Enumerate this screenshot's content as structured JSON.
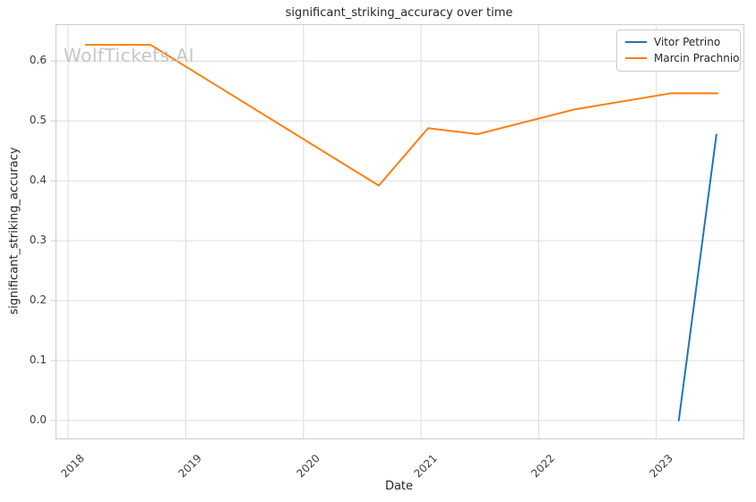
{
  "figure": {
    "watermark": "WolfTickets.AI"
  },
  "chart_data": {
    "type": "line",
    "title": "significant_striking_accuracy over time",
    "xlabel": "Date",
    "ylabel": "significant_striking_accuracy",
    "grid": true,
    "legend_position": "upper right",
    "xlim": [
      2017.9,
      2023.74
    ],
    "ylim": [
      -0.03,
      0.66
    ],
    "xticks": {
      "values": [
        2018,
        2019,
        2020,
        2021,
        2022,
        2023
      ],
      "labels": [
        "2018",
        "2019",
        "2020",
        "2021",
        "2022",
        "2023"
      ]
    },
    "yticks": {
      "values": [
        0.0,
        0.1,
        0.2,
        0.3,
        0.4,
        0.5,
        0.6
      ],
      "labels": [
        "0.0",
        "0.1",
        "0.2",
        "0.3",
        "0.4",
        "0.5",
        "0.6"
      ]
    },
    "series": [
      {
        "name": "Vitor Petrino",
        "color": "#1f77b4",
        "points": [
          [
            2023.19,
            0.0
          ],
          [
            2023.51,
            0.477
          ]
        ]
      },
      {
        "name": "Marcin Prachnio",
        "color": "#ff7f0e",
        "points": [
          [
            2018.15,
            0.627
          ],
          [
            2018.7,
            0.627
          ],
          [
            2020.64,
            0.392
          ],
          [
            2021.06,
            0.488
          ],
          [
            2021.48,
            0.478
          ],
          [
            2022.3,
            0.519
          ],
          [
            2023.12,
            0.546
          ],
          [
            2023.52,
            0.546
          ]
        ]
      }
    ],
    "colors": {
      "grid": "#dcdcdc",
      "spine": "#cdcdcd",
      "tick": "#3d3d3d",
      "text": "#262626",
      "watermark": "#c6c6c6"
    }
  }
}
